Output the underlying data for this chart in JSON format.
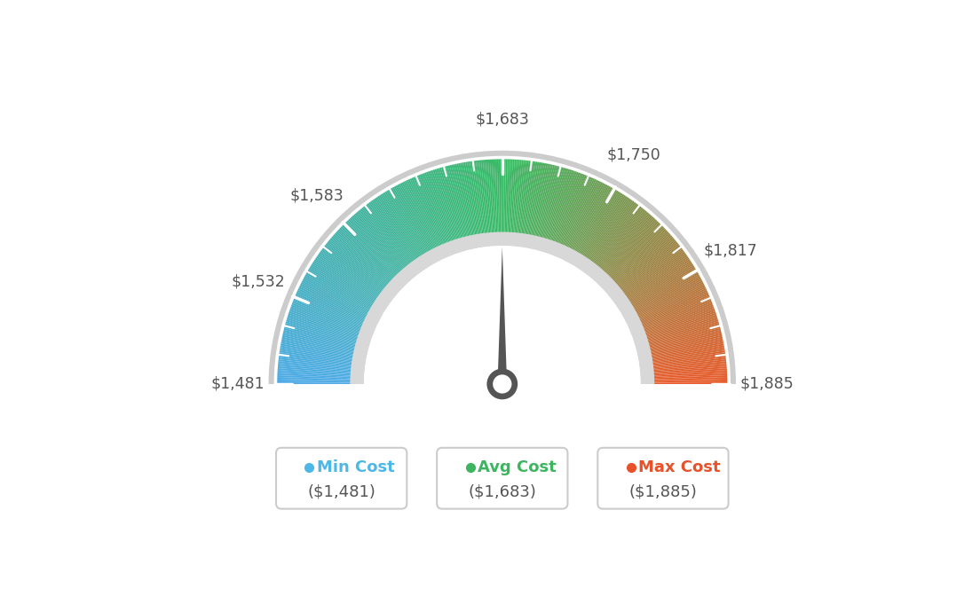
{
  "min_val": 1481,
  "avg_val": 1683,
  "max_val": 1885,
  "tick_labels": [
    "$1,481",
    "$1,532",
    "$1,583",
    "$1,683",
    "$1,750",
    "$1,817",
    "$1,885"
  ],
  "tick_values": [
    1481,
    1532,
    1583,
    1683,
    1750,
    1817,
    1885
  ],
  "legend": [
    {
      "label": "Min Cost",
      "value": "($1,481)",
      "color": "#4db8e8"
    },
    {
      "label": "Avg Cost",
      "value": "($1,683)",
      "color": "#3db560"
    },
    {
      "label": "Max Cost",
      "value": "($1,885)",
      "color": "#e8522a"
    }
  ],
  "needle_value": 1683,
  "bg_color": "#ffffff",
  "colors_blue": [
    75,
    170,
    230
  ],
  "colors_green": [
    55,
    185,
    100
  ],
  "colors_orange": [
    232,
    90,
    42
  ]
}
